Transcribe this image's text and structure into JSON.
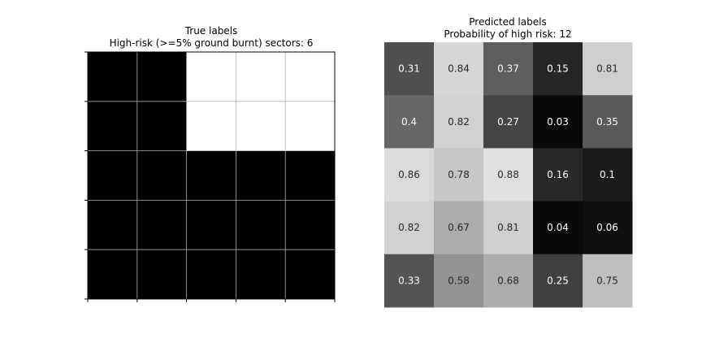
{
  "chart_data": [
    {
      "type": "heatmap",
      "title": "True labels",
      "subtitle": "High-risk (>=5% ground burnt) sectors: 6",
      "rows": 5,
      "cols": 5,
      "grid": true,
      "ticks_visible": true,
      "colormap": "gray",
      "values": [
        [
          0,
          0,
          1,
          1,
          1
        ],
        [
          0,
          0,
          1,
          1,
          1
        ],
        [
          0,
          0,
          0,
          0,
          0
        ],
        [
          0,
          0,
          0,
          0,
          0
        ],
        [
          0,
          0,
          0,
          0,
          0
        ]
      ]
    },
    {
      "type": "heatmap",
      "title": "Predicted labels",
      "subtitle": "Probability of high risk: 12",
      "rows": 5,
      "cols": 5,
      "grid": false,
      "ticks_visible": false,
      "colormap": "gray",
      "values": [
        [
          0.31,
          0.84,
          0.37,
          0.15,
          0.81
        ],
        [
          0.4,
          0.82,
          0.27,
          0.03,
          0.35
        ],
        [
          0.86,
          0.78,
          0.88,
          0.16,
          0.1
        ],
        [
          0.82,
          0.67,
          0.81,
          0.04,
          0.06
        ],
        [
          0.33,
          0.58,
          0.68,
          0.25,
          0.75
        ]
      ],
      "value_labels": [
        [
          "0.31",
          "0.84",
          "0.37",
          "0.15",
          "0.81"
        ],
        [
          "0.4",
          "0.82",
          "0.27",
          "0.03",
          "0.35"
        ],
        [
          "0.86",
          "0.78",
          "0.88",
          "0.16",
          "0.1"
        ],
        [
          "0.82",
          "0.67",
          "0.81",
          "0.04",
          "0.06"
        ],
        [
          "0.33",
          "0.58",
          "0.68",
          "0.25",
          "0.75"
        ]
      ]
    }
  ]
}
